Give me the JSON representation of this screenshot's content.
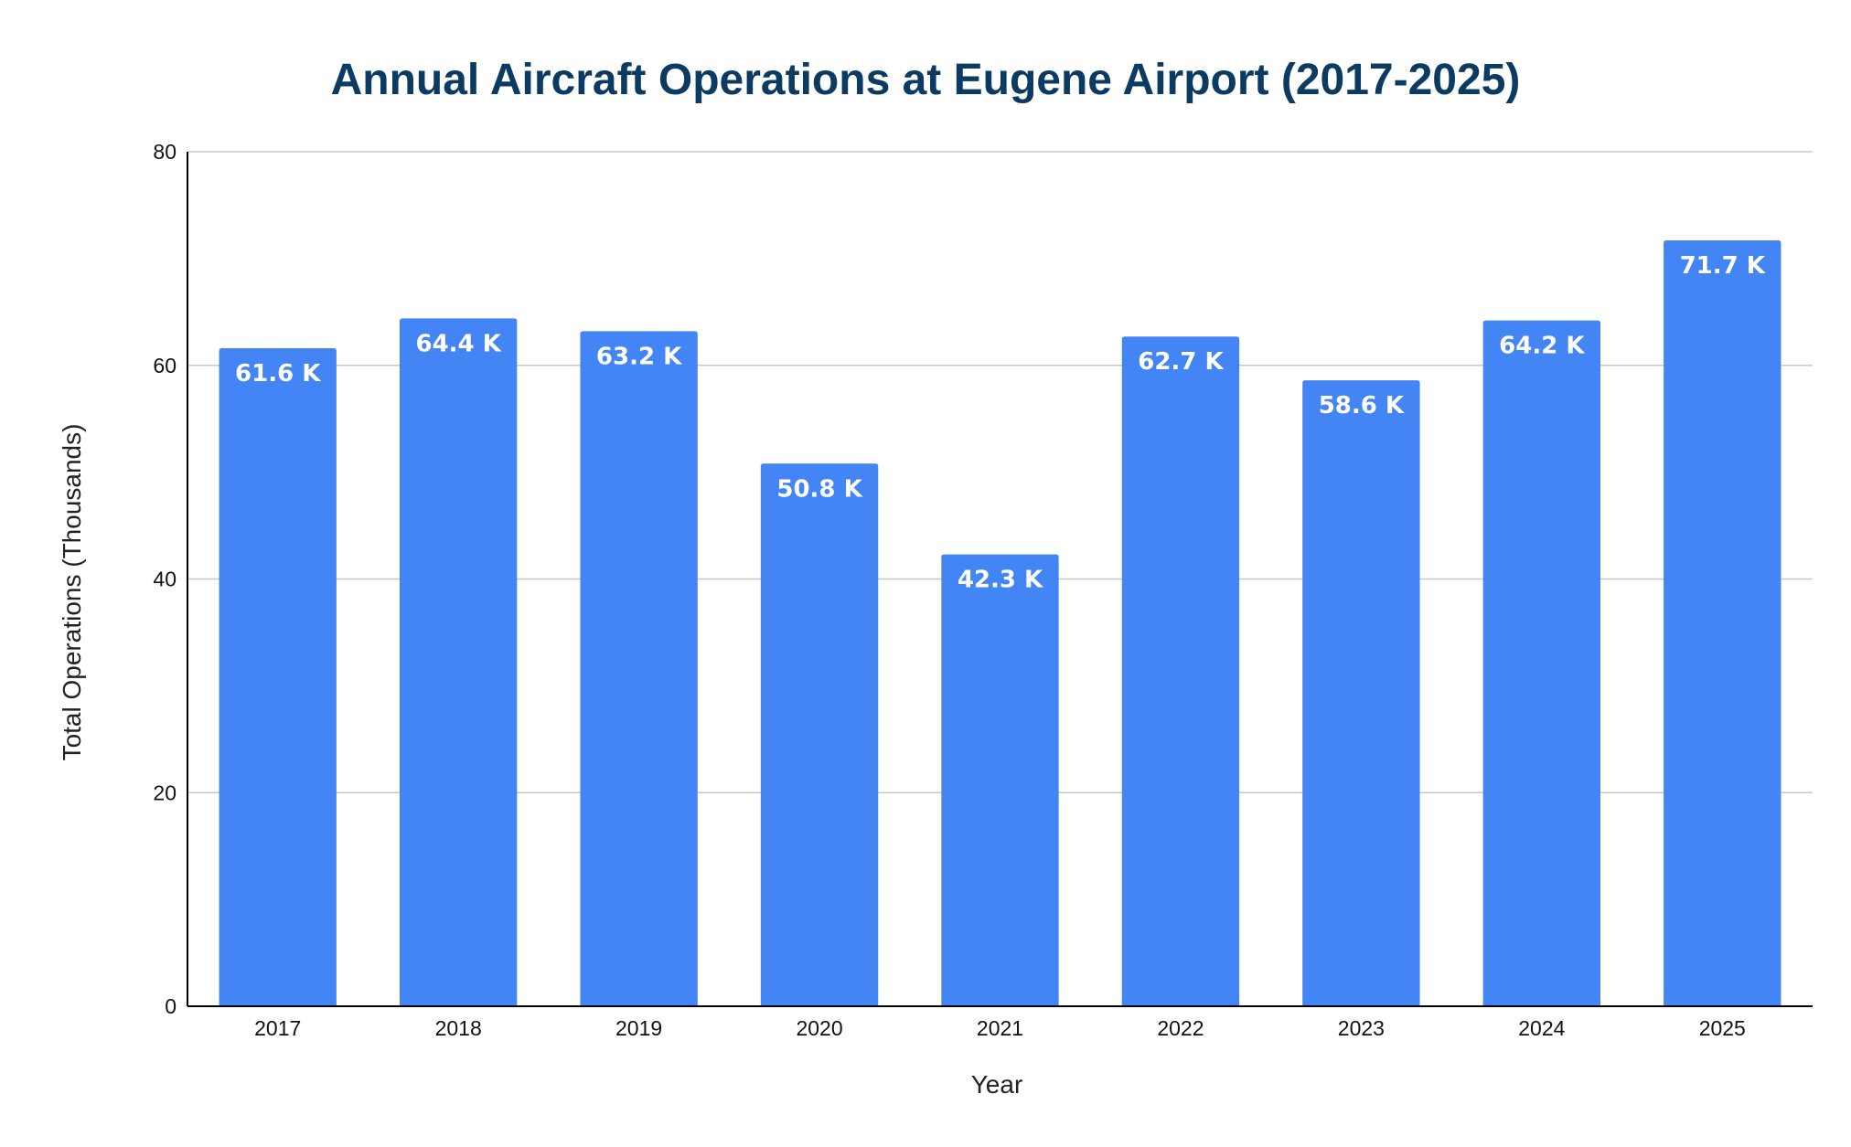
{
  "chart_data": {
    "type": "bar",
    "title": "Annual Aircraft Operations at Eugene Airport (2017-2025)",
    "xlabel": "Year",
    "ylabel": "Total Operations (Thousands)",
    "categories": [
      "2017",
      "2018",
      "2019",
      "2020",
      "2021",
      "2022",
      "2023",
      "2024",
      "2025"
    ],
    "series": [
      {
        "values": [
          61.6,
          64.4,
          63.2,
          50.8,
          42.3,
          62.7,
          58.6,
          64.2,
          71.7
        ],
        "data_labels": [
          "61.6 K",
          "64.4 K",
          "63.2 K",
          "50.8 K",
          "42.3 K",
          "62.7 K",
          "58.6 K",
          "64.2 K",
          "71.7 K"
        ]
      }
    ],
    "ylim": [
      0,
      80
    ],
    "yticks": [
      0,
      20,
      40,
      60,
      80
    ],
    "grid": true,
    "legend": "none",
    "colors": {
      "bar": "#4385f4",
      "title": "#0b3a63",
      "gridline": "#c8c8c8",
      "axis": "#000000"
    }
  }
}
